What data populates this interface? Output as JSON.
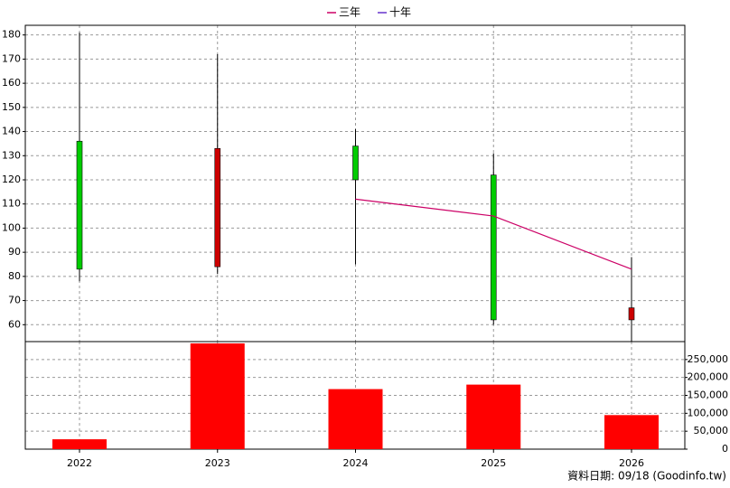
{
  "footer": "資料日期: 09/18 (Goodinfo.tw)",
  "chart_data": [
    {
      "type": "candlestick",
      "categories": [
        "2022",
        "2023",
        "2024",
        "2025",
        "2026"
      ],
      "open": [
        136,
        84,
        134,
        122,
        62
      ],
      "high": [
        181,
        172,
        141,
        131,
        88
      ],
      "low": [
        78,
        81,
        85,
        60,
        53
      ],
      "close": [
        83,
        133,
        120,
        62,
        67
      ],
      "up_color": "#cc0000",
      "down_color": "#00cc00",
      "series": [
        {
          "name": "三年",
          "color": "#cc0066",
          "values": [
            null,
            null,
            112,
            105,
            83
          ]
        },
        {
          "name": "十年",
          "color": "#6633cc",
          "values": [
            null,
            null,
            null,
            null,
            null
          ]
        }
      ],
      "legend": "top",
      "ylim": [
        53,
        184
      ],
      "yticks": [
        60,
        70,
        80,
        90,
        100,
        110,
        120,
        130,
        140,
        150,
        160,
        170,
        180
      ],
      "grid": true
    },
    {
      "type": "bar",
      "categories": [
        "2022",
        "2023",
        "2024",
        "2025",
        "2026"
      ],
      "values": [
        27500,
        295000,
        167500,
        180000,
        95000
      ],
      "color": "#ff0000",
      "ylim": [
        0,
        300000
      ],
      "yticks": [
        0,
        {
          "value": 50000,
          "label": "50,000"
        },
        {
          "value": 100000,
          "label": "100,000"
        },
        {
          "value": 150000,
          "label": "150,000"
        },
        {
          "value": 200000,
          "label": "200,000"
        },
        {
          "value": 250000,
          "label": "250,000"
        }
      ],
      "grid": true
    }
  ]
}
